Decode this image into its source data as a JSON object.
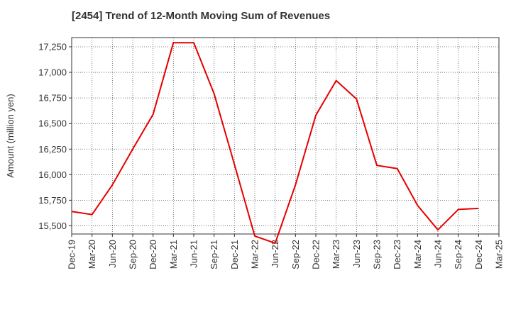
{
  "chart_data": {
    "type": "line",
    "title": "[2454]  Trend of 12-Month Moving Sum of Revenues",
    "xlabel": "",
    "ylabel": "Amount (million yen)",
    "ylim": [
      15420,
      17340
    ],
    "y_ticks": [
      15500,
      15750,
      16000,
      16250,
      16500,
      16750,
      17000,
      17250
    ],
    "y_tick_labels": [
      "15,500",
      "15,750",
      "16,000",
      "16,250",
      "16,500",
      "16,750",
      "17,000",
      "17,250"
    ],
    "x_tick_labels": [
      "Dec-19",
      "Mar-20",
      "Jun-20",
      "Sep-20",
      "Dec-20",
      "Mar-21",
      "Jun-21",
      "Sep-21",
      "Dec-21",
      "Mar-22",
      "Jun-22",
      "Sep-22",
      "Dec-22",
      "Mar-23",
      "Jun-23",
      "Sep-23",
      "Dec-23",
      "Mar-24",
      "Jun-24",
      "Sep-24",
      "Dec-24",
      "Mar-25"
    ],
    "grid": true,
    "series": [
      {
        "color": "#e60000",
        "x": [
          "Dec-19",
          "Mar-20",
          "Jun-20",
          "Sep-20",
          "Dec-20",
          "Mar-21",
          "Jun-21",
          "Sep-21",
          "Dec-21",
          "Mar-22",
          "Jun-22",
          "Sep-22",
          "Dec-22",
          "Mar-23",
          "Jun-23",
          "Sep-23",
          "Dec-23",
          "Mar-24",
          "Jun-24",
          "Sep-24",
          "Dec-24"
        ],
        "values": [
          15640,
          15610,
          15900,
          16250,
          16590,
          17290,
          17290,
          16790,
          16100,
          15400,
          15330,
          15900,
          16580,
          16920,
          16740,
          16090,
          16060,
          15700,
          15460,
          15660,
          15670
        ]
      }
    ]
  }
}
